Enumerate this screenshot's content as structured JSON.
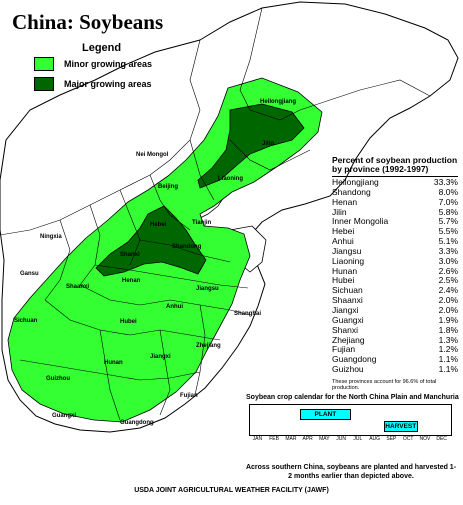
{
  "title": "China:  Soybeans",
  "legend": {
    "title": "Legend",
    "items": [
      {
        "label": "Minor growing areas",
        "color": "#33ff33"
      },
      {
        "label": "Major growing areas",
        "color": "#006600"
      }
    ]
  },
  "colors": {
    "minor": "#33ff33",
    "major": "#006600",
    "water": "#ffffff",
    "land": "#ffffff"
  },
  "provinces": [
    "Heilongjiang",
    "Jilin",
    "Liaoning",
    "Nei Mongol",
    "Beijing",
    "Tianjin",
    "Hebei",
    "Shanxi",
    "Shandong",
    "Henan",
    "Ningxia",
    "Gansu",
    "Shaanxi",
    "Jiangsu",
    "Anhui",
    "Shanghai",
    "Sichuan",
    "Hubei",
    "Zhejiang",
    "Hunan",
    "Jiangxi",
    "Guizhou",
    "Fujian",
    "Guangxi",
    "Guangdong"
  ],
  "production_table": {
    "title": "Percent of soybean production by province (1992-1997)",
    "rows": [
      {
        "province": "Heilongjiang",
        "value": "33.3%"
      },
      {
        "province": "Shandong",
        "value": "8.0%"
      },
      {
        "province": "Henan",
        "value": "7.0%"
      },
      {
        "province": "Jilin",
        "value": "5.8%"
      },
      {
        "province": "Inner Mongolia",
        "value": "5.7%"
      },
      {
        "province": "Hebei",
        "value": "5.5%"
      },
      {
        "province": "Anhui",
        "value": "5.1%"
      },
      {
        "province": "Jiangsu",
        "value": "3.3%"
      },
      {
        "province": "Liaoning",
        "value": "3.0%"
      },
      {
        "province": "Hunan",
        "value": "2.6%"
      },
      {
        "province": "Hubei",
        "value": "2.5%"
      },
      {
        "province": "Sichuan",
        "value": "2.4%"
      },
      {
        "province": "Shaanxi",
        "value": "2.0%"
      },
      {
        "province": "Jiangxi",
        "value": "2.0%"
      },
      {
        "province": "Guangxi",
        "value": "1.9%"
      },
      {
        "province": "Shanxi",
        "value": "1.8%"
      },
      {
        "province": "Zhejiang",
        "value": "1.3%"
      },
      {
        "province": "Fujian",
        "value": "1.2%"
      },
      {
        "province": "Guangdong",
        "value": "1.1%"
      },
      {
        "province": "Guizhou",
        "value": "1.1%"
      }
    ],
    "note": "These provinces account for 96.6% of total production."
  },
  "calendar": {
    "title": "Soybean crop calendar for the North China Plain and Manchuria",
    "months": [
      "JAN",
      "FEB",
      "MAR",
      "APR",
      "MAY",
      "JUN",
      "JUL",
      "AUG",
      "SEP",
      "OCT",
      "NOV",
      "DEC"
    ],
    "plant": {
      "label": "PLANT",
      "start_month": 4,
      "end_month": 6,
      "color": "#00ffff"
    },
    "harvest": {
      "label": "HARVEST",
      "start_month": 9,
      "end_month": 10,
      "color": "#00ffff"
    }
  },
  "note": "Across southern China, soybeans are planted and harvested 1- 2 months earlier than depicted above.",
  "footer": "USDA JOINT AGRICULTURAL WEATHER FACILITY (JAWF)"
}
